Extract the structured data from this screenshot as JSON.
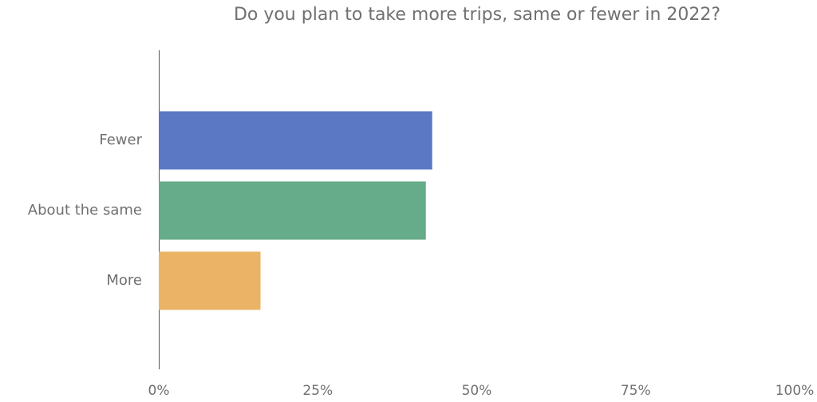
{
  "chart_data": {
    "type": "hbar",
    "title": "Do you plan to take more trips, same or fewer in 2022?",
    "categories": [
      "Fewer",
      "About the same",
      "More"
    ],
    "values": [
      43,
      42,
      16
    ],
    "colors": [
      "#5b78c4",
      "#66ab8a",
      "#eab366"
    ],
    "xlim": [
      0,
      100
    ],
    "xticks": [
      {
        "value": 0,
        "label": "0%"
      },
      {
        "value": 25,
        "label": "25%"
      },
      {
        "value": 50,
        "label": "50%"
      },
      {
        "value": 75,
        "label": "75%"
      },
      {
        "value": 100,
        "label": "100%"
      }
    ],
    "grid": false
  }
}
